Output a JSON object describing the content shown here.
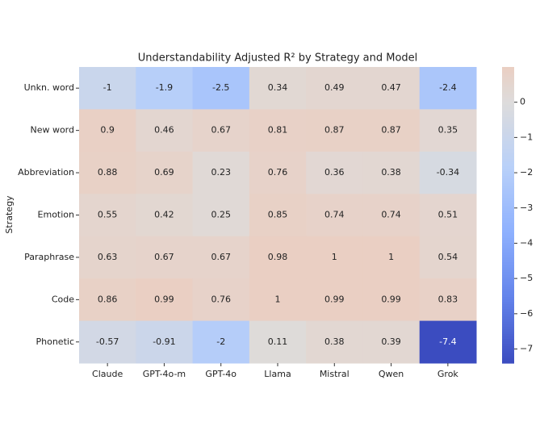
{
  "chart_data": {
    "type": "heatmap",
    "title": "Understandability Adjusted R² by Strategy and Model",
    "y_label": "Strategy",
    "x_categories": [
      "Claude",
      "GPT-4o-m",
      "GPT-4o",
      "Llama",
      "Mistral",
      "Qwen",
      "Grok"
    ],
    "y_categories": [
      "Unkn. word",
      "New word",
      "Abbreviation",
      "Emotion",
      "Paraphrase",
      "Code",
      "Phonetic"
    ],
    "values": [
      [
        -1,
        -1.9,
        -2.5,
        0.34,
        0.49,
        0.47,
        -2.4
      ],
      [
        0.9,
        0.46,
        0.67,
        0.81,
        0.87,
        0.87,
        0.35
      ],
      [
        0.88,
        0.69,
        0.23,
        0.76,
        0.36,
        0.38,
        -0.34
      ],
      [
        0.55,
        0.42,
        0.25,
        0.85,
        0.74,
        0.74,
        0.51
      ],
      [
        0.63,
        0.67,
        0.67,
        0.98,
        1,
        1,
        0.54
      ],
      [
        0.86,
        0.99,
        0.76,
        1,
        0.99,
        0.99,
        0.83
      ],
      [
        -0.57,
        -0.91,
        -2,
        0.11,
        0.38,
        0.39,
        -7.4
      ]
    ],
    "colormap": "coolwarm",
    "center": 0,
    "colorbar_lim": [
      -7.4,
      1
    ],
    "colorbar_ticks": [
      {
        "value": 0,
        "label": "0"
      },
      {
        "value": -1,
        "label": "−1"
      },
      {
        "value": -2,
        "label": "−2"
      },
      {
        "value": -3,
        "label": "−3"
      },
      {
        "value": -4,
        "label": "−4"
      },
      {
        "value": -5,
        "label": "−5"
      },
      {
        "value": -6,
        "label": "−6"
      },
      {
        "value": -7,
        "label": "−7"
      }
    ]
  }
}
